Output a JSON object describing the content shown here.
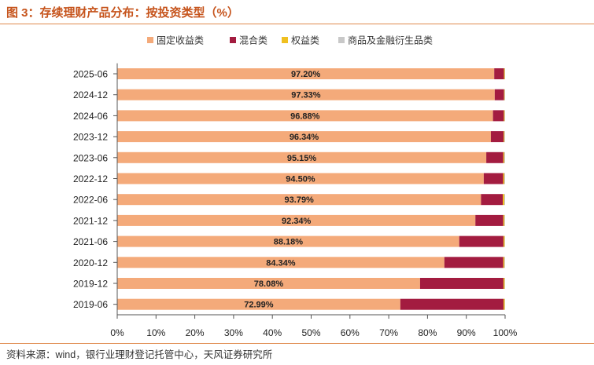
{
  "figure": {
    "title": "图 3：存续理财产品分布：按投资类型（%）",
    "source": "资料来源：wind，银行业理财登记托管中心，天风证券研究所"
  },
  "chart_data": {
    "type": "bar",
    "orientation": "horizontal",
    "stacked": true,
    "normalized": true,
    "categories": [
      "2025-06",
      "2024-12",
      "2024-06",
      "2023-12",
      "2023-06",
      "2022-12",
      "2022-06",
      "2021-12",
      "2021-06",
      "2020-12",
      "2019-12",
      "2019-06"
    ],
    "series": [
      {
        "name": "固定收益类",
        "color": "#f4aa7a",
        "values": [
          97.2,
          97.33,
          96.88,
          96.34,
          95.15,
          94.5,
          93.79,
          92.34,
          88.18,
          84.34,
          78.08,
          72.99
        ]
      },
      {
        "name": "混合类",
        "color": "#a31c40",
        "values": [
          2.5,
          2.4,
          2.8,
          3.3,
          4.4,
          5.0,
          5.6,
          7.2,
          11.4,
          15.2,
          21.5,
          26.6
        ]
      },
      {
        "name": "权益类",
        "color": "#f0c020",
        "values": [
          0.2,
          0.15,
          0.2,
          0.2,
          0.25,
          0.3,
          0.4,
          0.3,
          0.3,
          0.3,
          0.3,
          0.3
        ]
      },
      {
        "name": "商品及金融衍生品类",
        "color": "#c8c8c8",
        "values": [
          0.1,
          0.12,
          0.12,
          0.16,
          0.2,
          0.2,
          0.21,
          0.16,
          0.12,
          0.16,
          0.12,
          0.11
        ]
      }
    ],
    "data_labels": [
      "97.20%",
      "97.33%",
      "96.88%",
      "96.34%",
      "95.15%",
      "94.50%",
      "93.79%",
      "92.34%",
      "88.18%",
      "84.34%",
      "78.08%",
      "72.99%"
    ],
    "xlim": [
      0,
      100
    ],
    "xticks": [
      "0%",
      "10%",
      "20%",
      "30%",
      "40%",
      "50%",
      "60%",
      "70%",
      "80%",
      "90%",
      "100%"
    ],
    "legend_position": "top",
    "grid": false
  }
}
